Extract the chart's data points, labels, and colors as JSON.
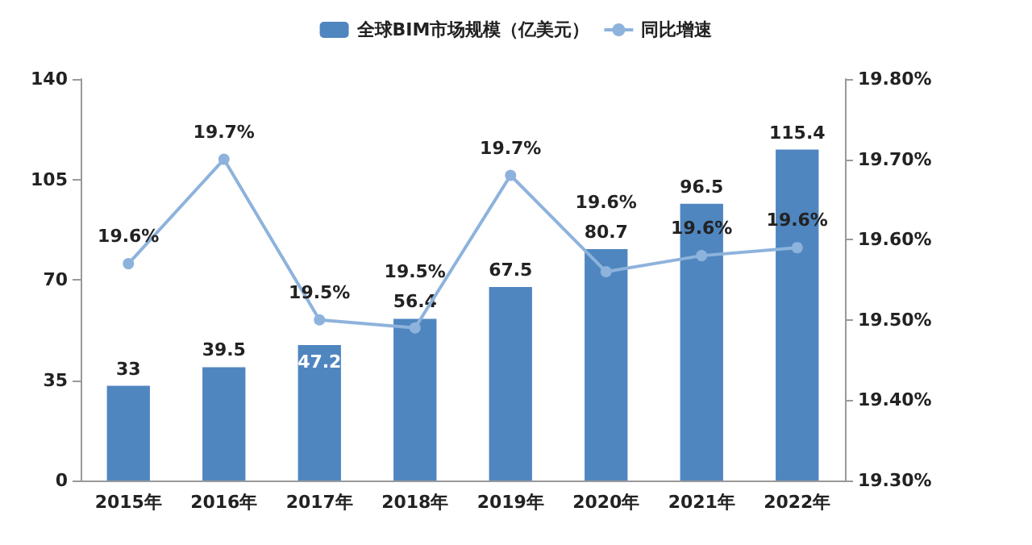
{
  "chart_data": {
    "type": "bar",
    "categories": [
      "2015年",
      "2016年",
      "2017年",
      "2018年",
      "2019年",
      "2020年",
      "2021年",
      "2022年"
    ],
    "series": [
      {
        "name": "全球BIM市场规模（亿美元）",
        "color": "#4f86c0",
        "values": [
          33,
          39.5,
          47.2,
          56.4,
          67.5,
          80.7,
          96.5,
          115.4
        ]
      },
      {
        "name": "同比增速",
        "type": "line",
        "axis": "y2",
        "color": "#8db3dc",
        "marker": "circle",
        "values": [
          19.57,
          19.7,
          19.5,
          19.49,
          19.68,
          19.56,
          19.58,
          19.59
        ],
        "value_labels": [
          "19.6%",
          "19.7%",
          "19.5%",
          "19.5%",
          "19.7%",
          "19.6%",
          "19.6%",
          "19.6%"
        ]
      }
    ],
    "data_labels": true,
    "ylim": [
      0,
      140
    ],
    "yticks": [
      0,
      35,
      70,
      105,
      140
    ],
    "y2lim": [
      19.3,
      19.8
    ],
    "y2ticks": [
      {
        "value": 19.3,
        "label": "19.30%"
      },
      {
        "value": 19.4,
        "label": "19.40%"
      },
      {
        "value": 19.5,
        "label": "19.50%"
      },
      {
        "value": 19.6,
        "label": "19.60%"
      },
      {
        "value": 19.7,
        "label": "19.70%"
      },
      {
        "value": 19.8,
        "label": "19.80%"
      }
    ],
    "grid": false,
    "legend": "top"
  }
}
